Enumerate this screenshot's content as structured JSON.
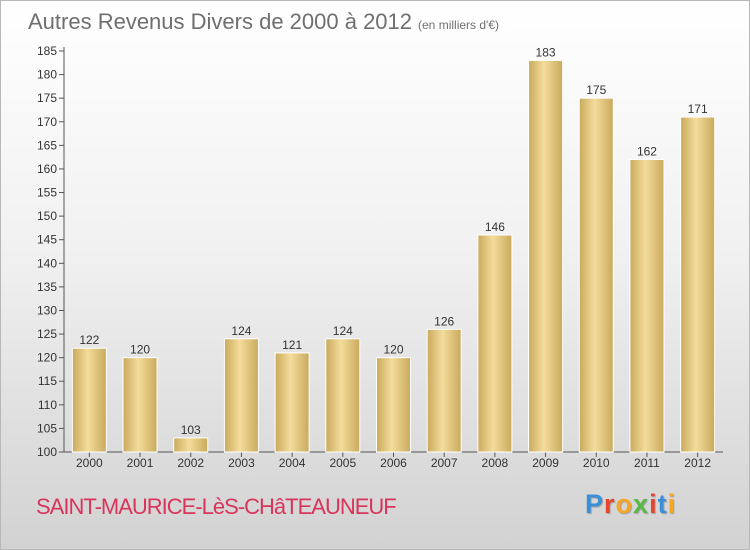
{
  "title": "Autres Revenus Divers de 2000 à 2012",
  "subtitle": "(en milliers d'€)",
  "place_name": "SAINT-MAURICE-LèS-CHâTEAUNEUF",
  "logo": {
    "text": "Proxiti",
    "colors": [
      "#3b8ed8",
      "#e8432d",
      "#f5a623",
      "#58b947",
      "#e8432d",
      "#3b8ed8",
      "#f5a623"
    ]
  },
  "colors": {
    "bar_light": "#f4dc9c",
    "bar_dark": "#c9aa5c",
    "axis": "#555555",
    "title": "#6f6f6f",
    "place_name": "#d9345a"
  },
  "chart_data": {
    "type": "bar",
    "title": "Autres Revenus Divers de 2000 à 2012",
    "subtitle": "(en milliers d'€)",
    "xlabel": "",
    "ylabel": "",
    "categories": [
      "2000",
      "2001",
      "2002",
      "2003",
      "2004",
      "2005",
      "2006",
      "2007",
      "2008",
      "2009",
      "2010",
      "2011",
      "2012"
    ],
    "values": [
      122,
      120,
      103,
      124,
      121,
      124,
      120,
      126,
      146,
      183,
      175,
      162,
      171
    ],
    "ylim": [
      100,
      185
    ],
    "yticks": [
      100,
      105,
      110,
      115,
      120,
      125,
      130,
      135,
      140,
      145,
      150,
      155,
      160,
      165,
      170,
      175,
      180,
      185
    ],
    "grid": false,
    "legend": "none",
    "data_labels": true
  }
}
